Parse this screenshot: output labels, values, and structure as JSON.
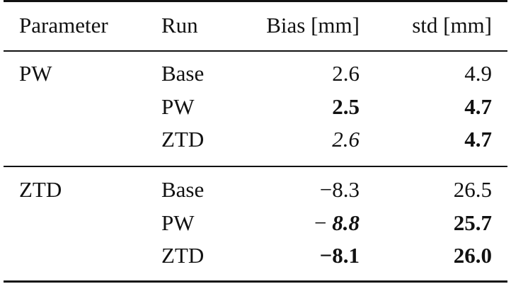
{
  "table": {
    "header": [
      "Parameter",
      "Run",
      "Bias [mm]",
      "std [mm]"
    ],
    "groups": [
      {
        "label": "PW",
        "rows": [
          [
            "Base",
            "2.6",
            "4.9"
          ],
          [
            "PW",
            {
              "text": "2.5",
              "style": "bold"
            },
            {
              "text": "4.7",
              "style": "bold"
            }
          ],
          [
            "ZTD",
            {
              "text": "2.6",
              "style": "italic"
            },
            {
              "text": "4.7",
              "style": "bold"
            }
          ]
        ]
      },
      {
        "label": "ZTD",
        "rows": [
          [
            "Base",
            "−8.3",
            "26.5"
          ],
          [
            "PW",
            {
              "parts": [
                {
                  "text": "− "
                },
                {
                  "text": "8.8",
                  "style": "bold-italic"
                }
              ]
            },
            {
              "text": "25.7",
              "style": "bold"
            }
          ],
          [
            "ZTD",
            {
              "text": "−8.1",
              "style": "bold"
            },
            {
              "text": "26.0",
              "style": "bold"
            }
          ]
        ]
      }
    ]
  }
}
